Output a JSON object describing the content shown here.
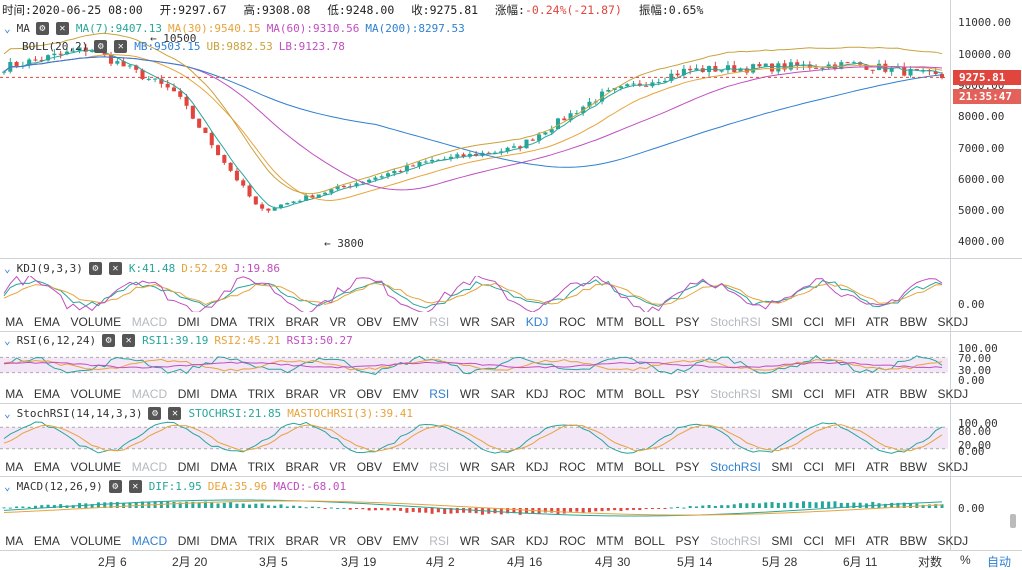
{
  "header": {
    "time_label": "时间:",
    "time": "2020-06-25 08:00",
    "open_label": "开:",
    "open": "9297.67",
    "high_label": "高:",
    "high": "9308.08",
    "low_label": "低:",
    "low": "9248.00",
    "close_label": "收:",
    "close": "9275.81",
    "change_label": "涨幅:",
    "change": "-0.24%(-21.87)",
    "amplitude_label": "振幅:",
    "amplitude": "0.65%"
  },
  "main_legend": {
    "ma_name": "MA",
    "ma7": "MA(7):9407.13",
    "ma30": "MA(30):9540.15",
    "ma60": "MA(60):9310.56",
    "ma200": "MA(200):8297.53",
    "boll_name": "BOLL(20,2)",
    "mb": "MB:9503.15",
    "ub": "UB:9882.53",
    "lb": "LB:9123.78"
  },
  "price_tag": "9275.81",
  "time_tag": "21:35:47",
  "annotations": {
    "high": "← 10500",
    "low": "← 3800"
  },
  "y_axis_main": [
    "11000.00",
    "10000.00",
    "9000.00",
    "8000.00",
    "7000.00",
    "6000.00",
    "5000.00",
    "4000.00"
  ],
  "kdj_legend": {
    "name": "KDJ(9,3,3)",
    "k": "K:41.48",
    "d": "D:52.29",
    "j": "J:19.86"
  },
  "kdj_axis": [
    "0.00"
  ],
  "rsi_legend": {
    "name": "RSI(6,12,24)",
    "r1": "RSI1:39.19",
    "r2": "RSI2:45.21",
    "r3": "RSI3:50.27"
  },
  "rsi_axis": [
    "100.00",
    "70.00",
    "30.00",
    "0.00"
  ],
  "stoch_legend": {
    "name": "StochRSI(14,14,3,3)",
    "s": "STOCHRSI:21.85",
    "m": "MASTOCHRSI(3):39.41"
  },
  "stoch_axis": [
    "100.00",
    "80.00",
    "20.00",
    "0.00"
  ],
  "macd_legend": {
    "name": "MACD(12,26,9)",
    "dif": "DIF:1.95",
    "dea": "DEA:35.96",
    "macd": "MACD:-68.01"
  },
  "macd_axis": [
    "0.00"
  ],
  "indicator_tabs": [
    "MA",
    "EMA",
    "VOLUME",
    "MACD",
    "DMI",
    "DMA",
    "TRIX",
    "BRAR",
    "VR",
    "OBV",
    "EMV",
    "RSI",
    "WR",
    "SAR",
    "KDJ",
    "ROC",
    "MTM",
    "BOLL",
    "PSY",
    "StochRSI",
    "SMI",
    "CCI",
    "MFI",
    "ATR",
    "BBW",
    "SKDJ"
  ],
  "tab_states": {
    "kdj": {
      "active": "KDJ",
      "dim": [
        "MACD",
        "RSI",
        "StochRSI"
      ]
    },
    "rsi": {
      "active": "RSI",
      "dim": [
        "MACD",
        "StochRSI"
      ]
    },
    "stoch": {
      "active": "StochRSI",
      "dim": [
        "MACD",
        "RSI"
      ]
    },
    "macd": {
      "active": "MACD",
      "dim": [
        "RSI",
        "StochRSI"
      ]
    }
  },
  "x_labels": [
    "2月 6",
    "2月 20",
    "3月 5",
    "3月 19",
    "4月 2",
    "4月 16",
    "4月 30",
    "5月 14",
    "5月 28",
    "6月 11"
  ],
  "bottom_controls": {
    "log": "对数",
    "pct": "%",
    "auto": "自动"
  },
  "colors": {
    "up": "#26a69a",
    "down": "#e0463e",
    "ma7": "#26a69a",
    "ma30": "#e8a33c",
    "ma60": "#c04ec0",
    "ma200": "#2f7fd1",
    "boll": "#c9a23c"
  },
  "chart_data": {
    "type": "candlestick",
    "ylim": [
      3500,
      11300
    ],
    "key_points": [
      {
        "x": "2月 6",
        "y": 9600
      },
      {
        "x": "2月 20",
        "y": 10200
      },
      {
        "x": "3月 5",
        "y": 8800
      },
      {
        "x": "3月 12",
        "y": 5000
      },
      {
        "x": "3月 19",
        "y": 5800
      },
      {
        "x": "4月 2",
        "y": 6600
      },
      {
        "x": "4月 16",
        "y": 7000
      },
      {
        "x": "4月 30",
        "y": 8700
      },
      {
        "x": "5月 14",
        "y": 9500
      },
      {
        "x": "5月 28",
        "y": 9600
      },
      {
        "x": "6月 11",
        "y": 9700
      },
      {
        "x": "6月 25",
        "y": 9275.81
      }
    ],
    "annotated_high": 10500,
    "annotated_low": 3800
  }
}
